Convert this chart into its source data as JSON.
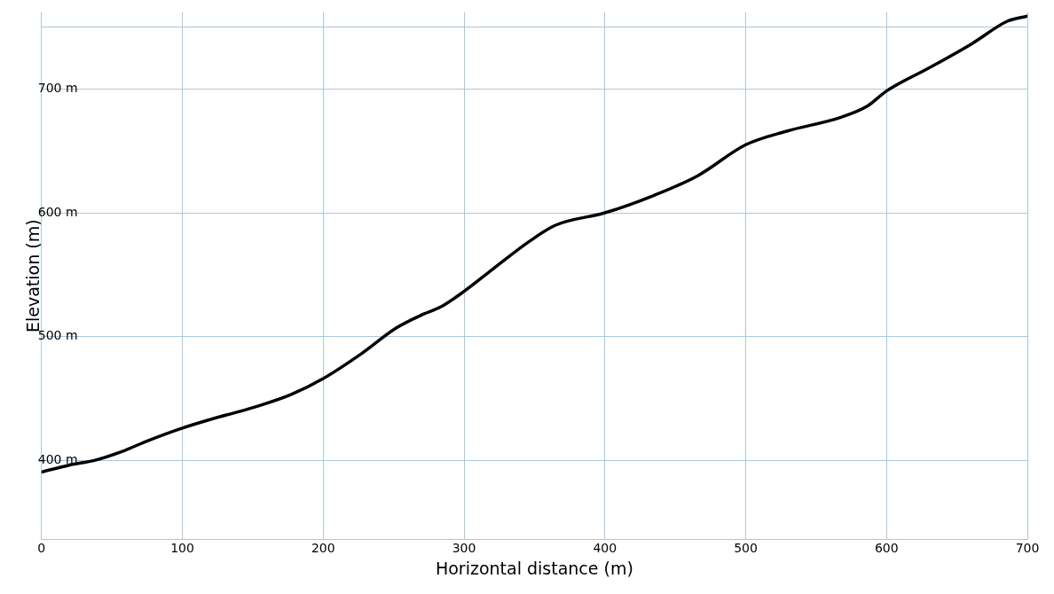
{
  "chart_data": {
    "type": "line",
    "xlabel": "Horizontal distance (m)",
    "ylabel": "Elevation (m)",
    "x": [
      0,
      19.5,
      38,
      57,
      76,
      100,
      120,
      151.5,
      177,
      200,
      227,
      252,
      271,
      283.6,
      300,
      321,
      346.5,
      365,
      400,
      434.6,
      466,
      500,
      529,
      567,
      586,
      600,
      630,
      661,
      686,
      700
    ],
    "series": [
      {
        "color": "#000000",
        "values": [
          390.5,
          396,
          400,
          407,
          416,
          426,
          433,
          443,
          453,
          466,
          486,
          507,
          518,
          524,
          536.5,
          555,
          577,
          590,
          600,
          614,
          630,
          655,
          666,
          677,
          686,
          698.5,
          717,
          737,
          755,
          759
        ]
      }
    ],
    "xlim": [
      0,
      700
    ],
    "xticks": [
      0,
      100,
      200,
      300,
      400,
      500,
      600,
      700
    ],
    "ylim": [
      336,
      762
    ],
    "yticks": [
      {
        "value": 400,
        "label": "400 m"
      },
      {
        "value": 500,
        "label": "500 m"
      },
      {
        "value": 600,
        "label": "600 m"
      },
      {
        "value": 700,
        "label": "700 m"
      },
      {
        "value": 750,
        "label": null
      }
    ],
    "grid": true,
    "legend": false,
    "marker": "none",
    "line_style": "solid"
  }
}
